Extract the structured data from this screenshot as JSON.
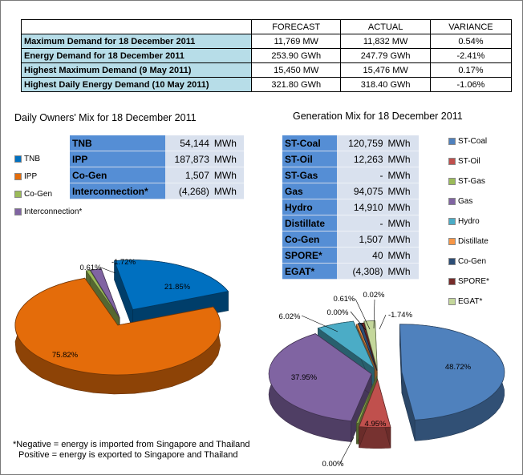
{
  "summary": {
    "headers": [
      "",
      "FORECAST",
      "ACTUAL",
      "VARIANCE"
    ],
    "rows": [
      {
        "label": "Maximum Demand for 18 December 2011",
        "forecast": "11,769  MW",
        "actual": "11,832  MW",
        "variance": "0.54%"
      },
      {
        "label": "Energy Demand for 18 December 2011",
        "forecast": "253.90  GWh",
        "actual": "247.79  GWh",
        "variance": "-2.41%"
      },
      {
        "label": "Highest Maximum Demand (9 May 2011)",
        "forecast": "15,450  MW",
        "actual": "15,476  MW",
        "variance": "0.17%"
      },
      {
        "label": "Highest Daily Energy Demand (10 May 2011)",
        "forecast": "321.80  GWh",
        "actual": "318.40  GWh",
        "variance": "-1.06%"
      }
    ]
  },
  "owners": {
    "title": "Daily Owners' Mix for 18 December 2011",
    "rows": [
      {
        "name": "TNB",
        "value": "54,144",
        "unit": "MWh"
      },
      {
        "name": "IPP",
        "value": "187,873",
        "unit": "MWh"
      },
      {
        "name": "Co-Gen",
        "value": "1,507",
        "unit": "MWh"
      },
      {
        "name": "Interconnection*",
        "value": "(4,268)",
        "unit": "MWh"
      }
    ],
    "legend": [
      {
        "label": "TNB",
        "color": "#0070c0"
      },
      {
        "label": "IPP",
        "color": "#e46c0a"
      },
      {
        "label": "Co-Gen",
        "color": "#9bbb59"
      },
      {
        "label": "Interconnection*",
        "color": "#8064a2"
      }
    ]
  },
  "generation": {
    "title": "Generation Mix for 18 December 2011",
    "rows": [
      {
        "name": "ST-Coal",
        "value": "120,759",
        "unit": "MWh"
      },
      {
        "name": "ST-Oil",
        "value": "12,263",
        "unit": "MWh"
      },
      {
        "name": "ST-Gas",
        "value": "-",
        "unit": "MWh"
      },
      {
        "name": "Gas",
        "value": "94,075",
        "unit": "MWh"
      },
      {
        "name": "Hydro",
        "value": "14,910",
        "unit": "MWh"
      },
      {
        "name": "Distillate",
        "value": "-",
        "unit": "MWh"
      },
      {
        "name": "Co-Gen",
        "value": "1,507",
        "unit": "MWh"
      },
      {
        "name": "SPORE*",
        "value": "40",
        "unit": "MWh"
      },
      {
        "name": "EGAT*",
        "value": "(4,308)",
        "unit": "MWh"
      }
    ],
    "legend": [
      {
        "label": "ST-Coal",
        "color": "#4f81bd"
      },
      {
        "label": "ST-Oil",
        "color": "#c0504d"
      },
      {
        "label": "ST-Gas",
        "color": "#9bbb59"
      },
      {
        "label": "Gas",
        "color": "#8064a2"
      },
      {
        "label": "Hydro",
        "color": "#4bacc6"
      },
      {
        "label": "Distillate",
        "color": "#f79646"
      },
      {
        "label": "Co-Gen",
        "color": "#2c4d75"
      },
      {
        "label": "SPORE*",
        "color": "#772c2a"
      },
      {
        "label": "EGAT*",
        "color": "#c4d79b"
      }
    ]
  },
  "note": {
    "line1": "*Negative = energy is imported from Singapore and Thailand",
    "line2": "Positive = energy is exported to Singapore and Thailand"
  },
  "chart_data": [
    {
      "type": "pie",
      "title": "Daily Owners' Mix for 18 December 2011",
      "labels": [
        "TNB",
        "IPP",
        "Co-Gen",
        "Interconnection*"
      ],
      "values": [
        21.85,
        75.82,
        0.61,
        -1.72
      ],
      "data_labels": [
        "21.85%",
        "75.82%",
        "0.61%",
        "-1.72%"
      ],
      "colors": [
        "#0070c0",
        "#e46c0a",
        "#9bbb59",
        "#8064a2"
      ],
      "legend": "left"
    },
    {
      "type": "pie",
      "title": "Generation Mix for 18 December 2011",
      "labels": [
        "ST-Coal",
        "ST-Oil",
        "ST-Gas",
        "Gas",
        "Hydro",
        "Distillate",
        "Co-Gen",
        "SPORE*",
        "EGAT*"
      ],
      "values": [
        48.72,
        4.95,
        0.0,
        37.95,
        6.02,
        0.0,
        0.61,
        0.02,
        -1.74
      ],
      "data_labels": [
        "48.72%",
        "4.95%",
        "0.00%",
        "37.95%",
        "6.02%",
        "0.00%",
        "0.61%",
        "0.02%",
        "-1.74%"
      ],
      "colors": [
        "#4f81bd",
        "#c0504d",
        "#9bbb59",
        "#8064a2",
        "#4bacc6",
        "#f79646",
        "#2c4d75",
        "#772c2a",
        "#c4d79b"
      ],
      "legend": "right"
    }
  ]
}
